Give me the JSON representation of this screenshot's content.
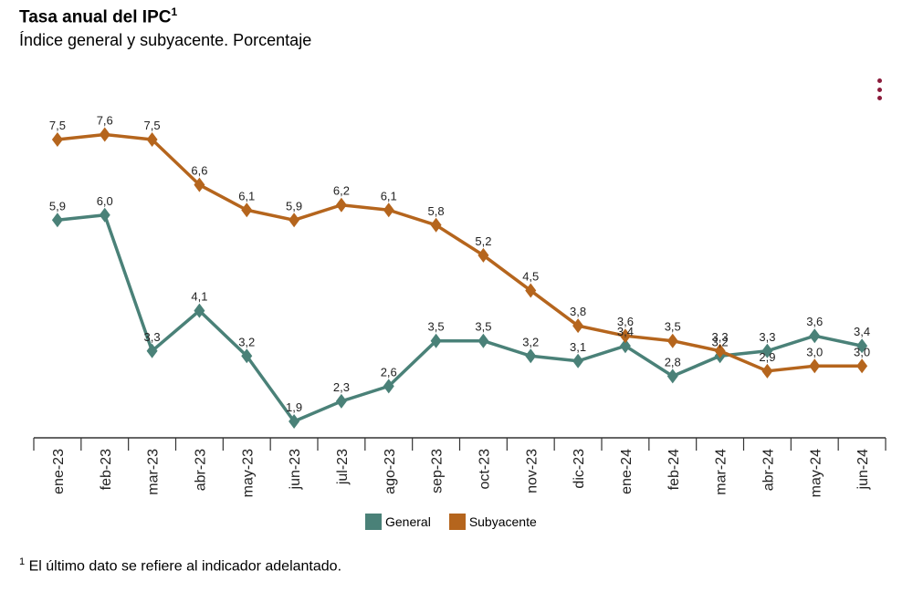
{
  "title": "Tasa anual del IPC",
  "title_sup": "1",
  "subtitle": "Índice general y subyacente. Porcentaje",
  "menu_icon": "kebab-menu-icon",
  "footnote_sup": "1",
  "footnote": "El último dato se refiere al indicador adelantado.",
  "chart_data": {
    "type": "line",
    "categories": [
      "ene-23",
      "feb-23",
      "mar-23",
      "abr-23",
      "may-23",
      "jun-23",
      "jul-23",
      "ago-23",
      "sep-23",
      "oct-23",
      "nov-23",
      "dic-23",
      "ene-24",
      "feb-24",
      "mar-24",
      "abr-24",
      "may-24",
      "jun-24"
    ],
    "ylim": [
      1.6,
      8.2
    ],
    "grid": false,
    "legend_position": "bottom",
    "series": [
      {
        "name": "General",
        "color": "#4a8178",
        "values": [
          5.9,
          6.0,
          3.3,
          4.1,
          3.2,
          1.9,
          2.3,
          2.6,
          3.5,
          3.5,
          3.2,
          3.1,
          3.4,
          2.8,
          3.2,
          3.3,
          3.6,
          3.4
        ],
        "labels": [
          "5,9",
          "6,0",
          "3,3",
          "4,1",
          "3,2",
          "1,9",
          "2,3",
          "2,6",
          "3,5",
          "3,5",
          "3,2",
          "3,1",
          "3,4",
          "2,8",
          "3,2",
          "3,3",
          "3,6",
          "3,4"
        ]
      },
      {
        "name": "Subyacente",
        "color": "#b5651d",
        "values": [
          7.5,
          7.6,
          7.5,
          6.6,
          6.1,
          5.9,
          6.2,
          6.1,
          5.8,
          5.2,
          4.5,
          3.8,
          3.6,
          3.5,
          3.3,
          2.9,
          3.0,
          3.0
        ],
        "labels": [
          "7,5",
          "7,6",
          "7,5",
          "6,6",
          "6,1",
          "5,9",
          "6,2",
          "6,1",
          "5,8",
          "5,2",
          "4,5",
          "3,8",
          "3,6",
          "3,5",
          "3,3",
          "2,9",
          "3,0",
          "3,0"
        ]
      }
    ]
  }
}
